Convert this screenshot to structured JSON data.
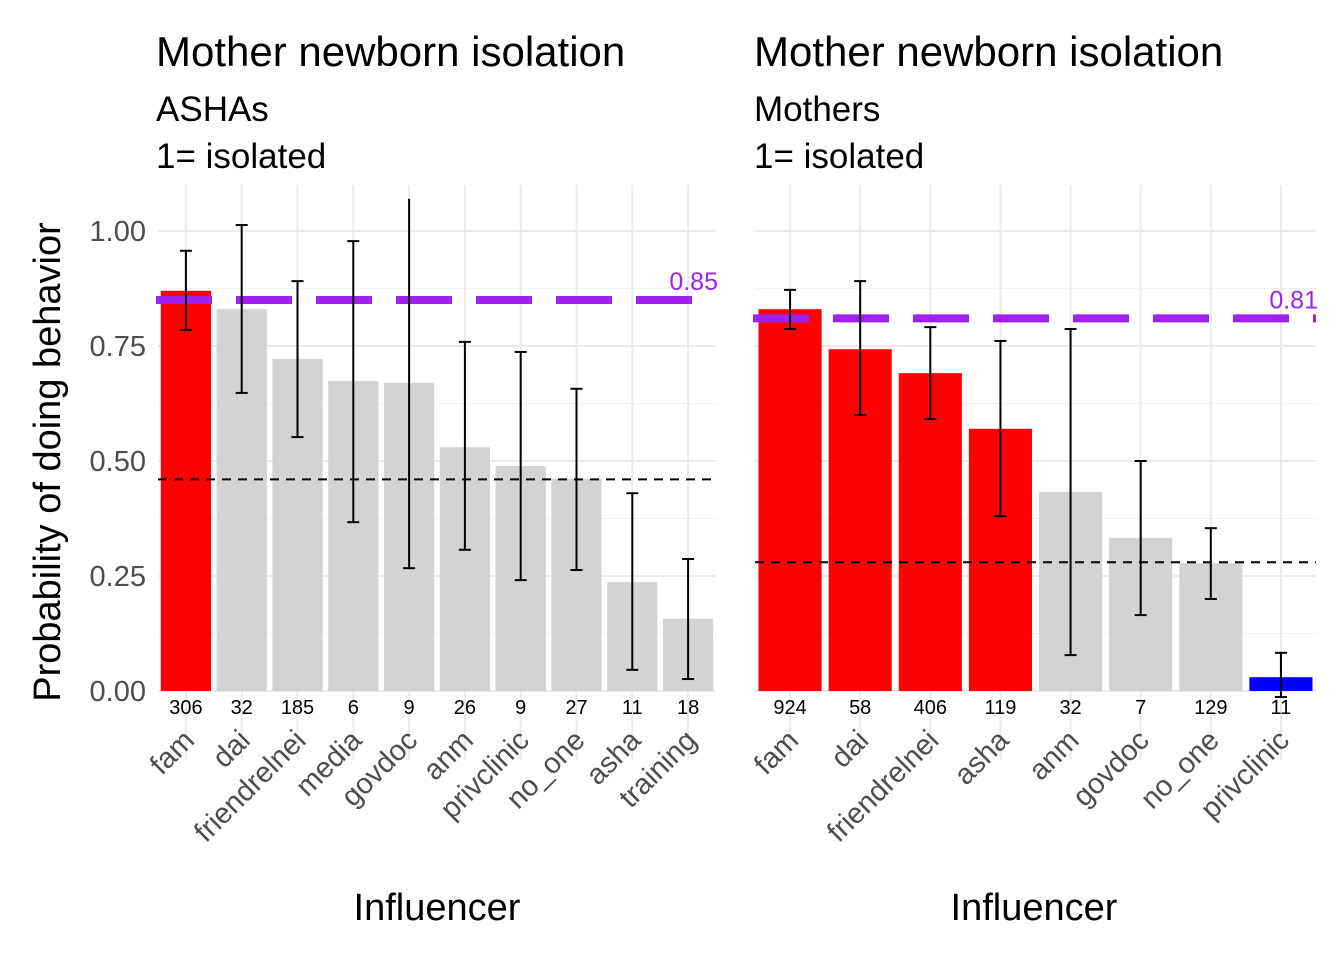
{
  "chart_data": {
    "type": "bar",
    "y_label": "Probability of doing behavior",
    "ylim": [
      0,
      1.07
    ],
    "y_ticks": [
      "0.00",
      "0.25",
      "0.50",
      "0.75",
      "1.00"
    ],
    "y_tick_values": [
      0,
      0.25,
      0.5,
      0.75,
      1.0
    ],
    "grid": true,
    "colors": {
      "high": "#ff0000",
      "neutral": "#d3d3d3",
      "low": "#0000ff",
      "reference": "#a020f0",
      "baseline": "#000000",
      "errorbar": "#000000"
    },
    "panels": [
      {
        "title": "Mother newborn isolation",
        "subtitle_line1": "ASHAs",
        "subtitle_line2": "1= isolated",
        "xlabel": "Influencer",
        "categories": [
          "fam",
          "dai",
          "friendrelnei",
          "media",
          "govdoc",
          "anm",
          "privclinic",
          "no_one",
          "asha",
          "training"
        ],
        "values": [
          0.87,
          0.83,
          0.722,
          0.674,
          0.67,
          0.53,
          0.489,
          0.461,
          0.237,
          0.157
        ],
        "ci_upper": [
          0.957,
          1.013,
          0.891,
          0.978,
          1.07,
          0.759,
          0.737,
          0.657,
          0.43,
          0.287
        ],
        "ci_lower": [
          0.785,
          0.648,
          0.552,
          0.367,
          0.267,
          0.307,
          0.241,
          0.263,
          0.046,
          0.026
        ],
        "counts": [
          "306",
          "32",
          "185",
          "6",
          "9",
          "26",
          "9",
          "27",
          "11",
          "18"
        ],
        "bar_colors": [
          "high",
          "neutral",
          "neutral",
          "neutral",
          "neutral",
          "neutral",
          "neutral",
          "neutral",
          "neutral",
          "neutral"
        ],
        "reference_line": 0.85,
        "reference_label": "0.85",
        "baseline_line": 0.46
      },
      {
        "title": "Mother newborn isolation",
        "subtitle_line1": "Mothers",
        "subtitle_line2": "1= isolated",
        "xlabel": "Influencer",
        "categories": [
          "fam",
          "dai",
          "friendrelnei",
          "asha",
          "anm",
          "govdoc",
          "no_one",
          "privclinic"
        ],
        "values": [
          0.83,
          0.743,
          0.691,
          0.57,
          0.433,
          0.333,
          0.278,
          0.03
        ],
        "ci_upper": [
          0.872,
          0.891,
          0.791,
          0.761,
          0.787,
          0.5,
          0.354,
          0.083
        ],
        "ci_lower": [
          0.787,
          0.6,
          0.591,
          0.38,
          0.078,
          0.165,
          0.2,
          -0.013
        ],
        "counts": [
          "924",
          "58",
          "406",
          "119",
          "32",
          "7",
          "129",
          "11"
        ],
        "bar_colors": [
          "high",
          "high",
          "high",
          "high",
          "neutral",
          "neutral",
          "neutral",
          "low"
        ],
        "reference_line": 0.81,
        "reference_label": "0.81",
        "baseline_line": 0.28
      }
    ]
  }
}
